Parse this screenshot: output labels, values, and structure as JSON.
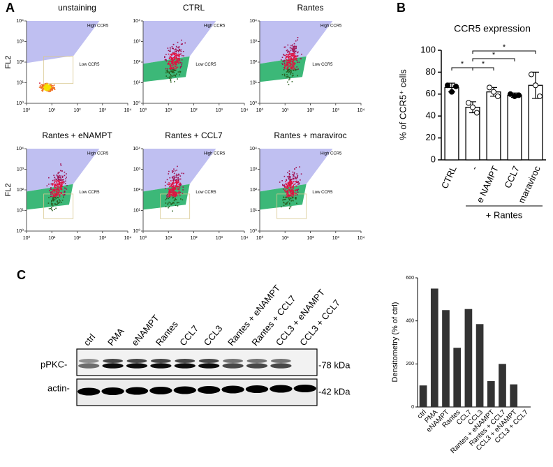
{
  "panel_a": {
    "label": "A",
    "ylabel": "FL2",
    "gates": [
      "High CCR5",
      "Low CCR5"
    ],
    "xticks": [
      {
        "value": 1,
        "label": "10⁰"
      },
      {
        "value": 10,
        "label": "10¹"
      },
      {
        "value": 100,
        "label": "10²"
      },
      {
        "value": 1000,
        "label": "10³"
      },
      {
        "value": 10000,
        "label": "10⁴"
      }
    ],
    "yticks": [
      {
        "value": 1,
        "label": "10⁰"
      },
      {
        "value": 10,
        "label": "10¹"
      },
      {
        "value": 100,
        "label": "10²"
      },
      {
        "value": 1000,
        "label": "10³"
      },
      {
        "value": 10000,
        "label": "10⁴"
      }
    ],
    "plots": [
      {
        "title": "unstaining"
      },
      {
        "title": "CTRL"
      },
      {
        "title": "Rantes"
      },
      {
        "title": "Rantes + eNAMPT"
      },
      {
        "title": "Rantes + CCL7"
      },
      {
        "title": "Rantes + maraviroc"
      }
    ]
  },
  "blot": {
    "label": "C",
    "rows": [
      "pPKC-",
      "actin-"
    ],
    "sizes": [
      "-78 kDa",
      "-42 kDa"
    ]
  },
  "chart_data": [
    {
      "type": "bar",
      "label": "B",
      "title": "CCR5 expression",
      "ylabel": "% of CCR5⁺ cells",
      "categories": [
        "CTRL",
        "-",
        "e NAMPT",
        "CCL7",
        "maraviroc"
      ],
      "values": [
        66,
        48,
        62,
        59,
        68
      ],
      "errors": [
        4,
        5,
        4,
        2,
        12
      ],
      "points": [
        [
          68,
          62,
          67
        ],
        [
          52,
          48,
          43
        ],
        [
          66,
          62,
          58
        ],
        [
          60,
          58,
          59
        ],
        [
          78,
          68,
          58
        ]
      ],
      "ylim": [
        0,
        100
      ],
      "yticks": [
        0,
        20,
        40,
        60,
        80,
        100
      ],
      "color": "#ffffff",
      "group_label": "+ Rantes",
      "significance": [
        {
          "pair": [
            0,
            1
          ],
          "label": "*"
        },
        {
          "pair": [
            1,
            2
          ],
          "label": "*"
        },
        {
          "pair": [
            1,
            3
          ],
          "label": "*"
        },
        {
          "pair": [
            1,
            4
          ],
          "label": "*"
        }
      ]
    },
    {
      "type": "bar",
      "ylabel": "Densitometry (% of ctrl)",
      "categories": [
        "ctrl",
        "PMA",
        "eNAMPT",
        "Rantes",
        "CCL7",
        "CCL3",
        "Rantes + eNAMPT",
        "Rantes + CCL7",
        "CCL3 + eNAMPT",
        "CCL3 + CCL7"
      ],
      "values": [
        100,
        550,
        450,
        275,
        455,
        385,
        120,
        200,
        105,
        0
      ],
      "ylim": [
        0,
        600
      ],
      "yticks": [
        0,
        200,
        400,
        600
      ],
      "color": "#333333"
    }
  ]
}
